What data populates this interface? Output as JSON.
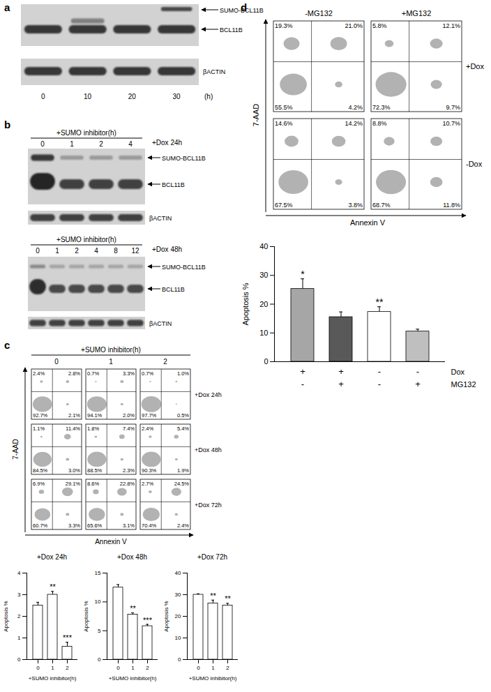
{
  "panels": {
    "a": {
      "letter": "a",
      "lanes": [
        "0",
        "10",
        "20",
        "30"
      ],
      "unit": "(h)",
      "labels": [
        "SUMO-BCL11B",
        "BCL11B",
        "βACTIN"
      ]
    },
    "b": {
      "letter": "b",
      "blots": [
        {
          "header": "+SUMO inhibitor(h)",
          "lanes": [
            "0",
            "1",
            "2",
            "4"
          ],
          "condition": "+Dox 24h",
          "labels": [
            "SUMO-BCL11B",
            "BCL11B",
            "βACTIN"
          ]
        },
        {
          "header": "+SUMO inhibitor(h)",
          "lanes": [
            "0",
            "1",
            "2",
            "4",
            "8",
            "12"
          ],
          "condition": "+Dox 48h",
          "labels": [
            "SUMO-BCL11B",
            "BCL11B",
            "βACTIN"
          ]
        }
      ]
    },
    "c": {
      "letter": "c",
      "header": "+SUMO inhibitor(h)",
      "columns": [
        "0",
        "1",
        "2"
      ],
      "rows": [
        "+Dox 24h",
        "+Dox 48h",
        "+Dox 72h"
      ],
      "y_axis": "7-AAD",
      "x_axis": "Annexin V",
      "plots": [
        [
          {
            "UL": {
              "value": 2.4,
              "label": "2.4%"
            },
            "UR": {
              "value": 2.8,
              "label": "2.8%"
            },
            "LL": {
              "value": 92.7,
              "label": "92.7%"
            },
            "LR": {
              "value": 2.1,
              "label": "2.1%"
            }
          },
          {
            "UL": {
              "value": 0.7,
              "label": "0.7%"
            },
            "UR": {
              "value": 3.3,
              "label": "3.3%"
            },
            "LL": {
              "value": 94.1,
              "label": "94.1%"
            },
            "LR": {
              "value": 2.0,
              "label": "2.0%"
            }
          },
          {
            "UL": {
              "value": 0.7,
              "label": "0.7%"
            },
            "UR": {
              "value": 1.0,
              "label": "1.0%"
            },
            "LL": {
              "value": 97.7,
              "label": "97.7%"
            },
            "LR": {
              "value": 0.5,
              "label": "0.5%"
            }
          }
        ],
        [
          {
            "UL": {
              "value": 1.1,
              "label": "1.1%"
            },
            "UR": {
              "value": 11.4,
              "label": "11.4%"
            },
            "LL": {
              "value": 84.5,
              "label": "84.5%"
            },
            "LR": {
              "value": 3.0,
              "label": "3.0%"
            }
          },
          {
            "UL": {
              "value": 1.8,
              "label": "1.8%"
            },
            "UR": {
              "value": 7.4,
              "label": "7.4%"
            },
            "LL": {
              "value": 88.5,
              "label": "88.5%"
            },
            "LR": {
              "value": 2.3,
              "label": "2.3%"
            }
          },
          {
            "UL": {
              "value": 2.4,
              "label": "2.4%"
            },
            "UR": {
              "value": 5.4,
              "label": "5.4%"
            },
            "LL": {
              "value": 90.3,
              "label": "90.3%"
            },
            "LR": {
              "value": 1.9,
              "label": "1.9%"
            }
          }
        ],
        [
          {
            "UL": {
              "value": 6.9,
              "label": "6.9%"
            },
            "UR": {
              "value": 29.1,
              "label": "29.1%"
            },
            "LL": {
              "value": 60.7,
              "label": "60.7%"
            },
            "LR": {
              "value": 3.3,
              "label": "3.3%"
            }
          },
          {
            "UL": {
              "value": 8.6,
              "label": "8.6%"
            },
            "UR": {
              "value": 22.8,
              "label": "22.8%"
            },
            "LL": {
              "value": 65.6,
              "label": "65.6%"
            },
            "LR": {
              "value": 3.1,
              "label": "3.1%"
            }
          },
          {
            "UL": {
              "value": 2.7,
              "label": "2.7%"
            },
            "UR": {
              "value": 24.5,
              "label": "24.5%"
            },
            "LL": {
              "value": 70.4,
              "label": "70.4%"
            },
            "LR": {
              "value": 2.4,
              "label": "2.4%"
            }
          }
        ]
      ]
    },
    "d": {
      "letter": "d",
      "columns": [
        "-MG132",
        "+MG132"
      ],
      "rows": [
        "+Dox",
        "-Dox"
      ],
      "y_axis": "7-AAD",
      "x_axis": "Annexin V",
      "plots": [
        [
          {
            "UL": {
              "value": 19.3,
              "label": "19.3%"
            },
            "UR": {
              "value": 21.0,
              "label": "21.0%"
            },
            "LL": {
              "value": 55.5,
              "label": "55.5%"
            },
            "LR": {
              "value": 4.2,
              "label": "4.2%"
            }
          },
          {
            "UL": {
              "value": 5.8,
              "label": "5.8%"
            },
            "UR": {
              "value": 12.1,
              "label": "12.1%"
            },
            "LL": {
              "value": 72.3,
              "label": "72.3%"
            },
            "LR": {
              "value": 9.7,
              "label": "9.7%"
            }
          }
        ],
        [
          {
            "UL": {
              "value": 14.6,
              "label": "14.6%"
            },
            "UR": {
              "value": 14.2,
              "label": "14.2%"
            },
            "LL": {
              "value": 67.5,
              "label": "67.5%"
            },
            "LR": {
              "value": 3.8,
              "label": "3.8%"
            }
          },
          {
            "UL": {
              "value": 8.8,
              "label": "8.8%"
            },
            "UR": {
              "value": 10.7,
              "label": "10.7%"
            },
            "LL": {
              "value": 68.7,
              "label": "68.7%"
            },
            "LR": {
              "value": 11.8,
              "label": "11.8%"
            }
          }
        ]
      ]
    }
  },
  "chart_data": [
    {
      "type": "bar",
      "title": "+Dox 24h",
      "categories": [
        "0",
        "1",
        "2"
      ],
      "values": [
        2.5,
        3.0,
        0.6
      ],
      "errors": [
        0.15,
        0.15,
        0.2
      ],
      "annotations": [
        null,
        "**",
        "***"
      ],
      "color": "#ffffff",
      "ylim": [
        0,
        4
      ],
      "yticks": [
        0,
        1,
        2,
        3,
        4
      ],
      "x_label": "+SUMO inhibitor(h)",
      "y_label": "Apoptosis %"
    },
    {
      "type": "bar",
      "title": "+Dox 48h",
      "categories": [
        "0",
        "1",
        "2"
      ],
      "values": [
        12.5,
        7.8,
        5.8
      ],
      "errors": [
        0.5,
        0.3,
        0.3
      ],
      "annotations": [
        null,
        "**",
        "***"
      ],
      "color": "#ffffff",
      "ylim": [
        0,
        15
      ],
      "yticks": [
        0,
        5,
        10,
        15
      ],
      "x_label": "+SUMO inhibitor(h)",
      "y_label": "Apoptosis %"
    },
    {
      "type": "bar",
      "title": "+Dox 72h",
      "categories": [
        "0",
        "1",
        "2"
      ],
      "values": [
        30,
        26,
        25
      ],
      "errors": [
        0.4,
        1.5,
        1.0
      ],
      "annotations": [
        null,
        "**",
        "**"
      ],
      "color": "#ffffff",
      "ylim": [
        0,
        40
      ],
      "yticks": [
        0,
        10,
        20,
        30,
        40
      ],
      "x_label": "+SUMO inhibitor(h)",
      "y_label": "Apoptosis %"
    },
    {
      "type": "bar",
      "categories": [
        null,
        null,
        null,
        null
      ],
      "values": [
        25.3,
        15.5,
        17.3,
        10.5
      ],
      "errors": [
        3.5,
        1.8,
        1.8,
        0.8
      ],
      "annotations": [
        "*",
        null,
        "**",
        null
      ],
      "colors": [
        "#a6a6a6",
        "#595959",
        "#ffffff",
        "#bfbfbf"
      ],
      "ylim": [
        0,
        40
      ],
      "yticks": [
        0,
        10,
        20,
        30,
        40
      ],
      "y_label": "Apoptosis %",
      "tick_labels": "y",
      "conditions": [
        {
          "label": "Dox",
          "values": [
            "+",
            "+",
            "-",
            "-"
          ]
        },
        {
          "label": "MG132",
          "values": [
            "-",
            "+",
            "-",
            "+"
          ]
        }
      ]
    }
  ]
}
